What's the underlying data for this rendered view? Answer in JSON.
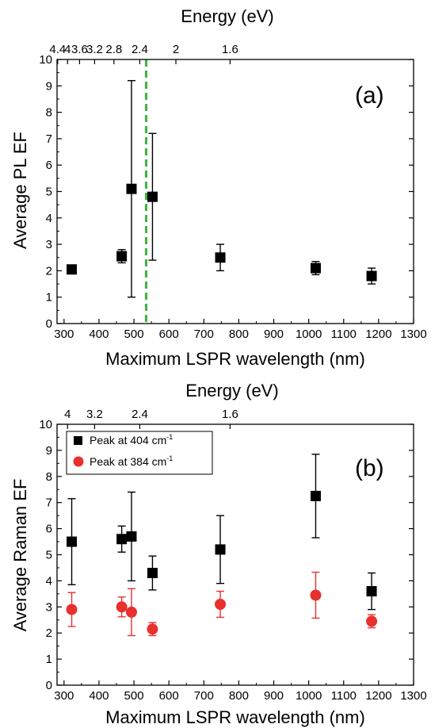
{
  "chart_data": [
    {
      "type": "scatter",
      "panel_label": "(a)",
      "xlabel": "Maximum LSPR wavelength (nm)",
      "ylabel": "Average PL EF",
      "top_axis_label": "Energy (eV)",
      "xlim": [
        280,
        1300
      ],
      "ylim": [
        0,
        10
      ],
      "x_ticks": [
        "300",
        "400",
        "500",
        "600",
        "700",
        "800",
        "900",
        "1000",
        "1100",
        "1200",
        "1300"
      ],
      "y_ticks": [
        "0",
        "1",
        "2",
        "3",
        "4",
        "5",
        "6",
        "7",
        "8",
        "9",
        "10"
      ],
      "top_ticks": [
        {
          "label": "4.4",
          "ev": 4.4
        },
        {
          "label": "4",
          "ev": 4.0
        },
        {
          "label": "3.6",
          "ev": 3.6
        },
        {
          "label": "3.2",
          "ev": 3.2
        },
        {
          "label": "2.8",
          "ev": 2.8
        },
        {
          "label": "2.4",
          "ev": 2.4
        },
        {
          "label": "2",
          "ev": 2.0
        },
        {
          "label": "1.6",
          "ev": 1.6
        }
      ],
      "vline": {
        "x": 535,
        "color": "#3cb83c",
        "style": "dashed"
      },
      "series": [
        {
          "marker": "square",
          "color": "#000000",
          "points": [
            {
              "x": 322,
              "y": 2.05,
              "err": 0.15
            },
            {
              "x": 465,
              "y": 2.55,
              "err": 0.25
            },
            {
              "x": 493,
              "y": 5.1,
              "err": 4.1
            },
            {
              "x": 553,
              "y": 4.8,
              "err": 2.4
            },
            {
              "x": 747,
              "y": 2.5,
              "err": 0.5
            },
            {
              "x": 1020,
              "y": 2.1,
              "err": 0.25
            },
            {
              "x": 1180,
              "y": 1.8,
              "err": 0.3
            }
          ]
        }
      ]
    },
    {
      "type": "scatter",
      "panel_label": "(b)",
      "xlabel": "Maximum LSPR wavelength (nm)",
      "ylabel": "Average Raman EF",
      "top_axis_label": "Energy (eV)",
      "xlim": [
        280,
        1300
      ],
      "ylim": [
        0,
        10
      ],
      "x_ticks": [
        "300",
        "400",
        "500",
        "600",
        "700",
        "800",
        "900",
        "1000",
        "1100",
        "1200",
        "1300"
      ],
      "y_ticks": [
        "0",
        "1",
        "2",
        "3",
        "4",
        "5",
        "6",
        "7",
        "8",
        "9",
        "10"
      ],
      "top_ticks": [
        {
          "label": "4",
          "ev": 4.0
        },
        {
          "label": "3.2",
          "ev": 3.2
        },
        {
          "label": "2.4",
          "ev": 2.4
        },
        {
          "label": "1.6",
          "ev": 1.6
        }
      ],
      "legend": {
        "placement": "top-left",
        "entries": [
          {
            "text": "Peak at 404 cm",
            "sup": "-1"
          },
          {
            "text": "Peak at 384 cm",
            "sup": "-1"
          }
        ]
      },
      "series": [
        {
          "marker": "square",
          "color": "#000000",
          "points": [
            {
              "x": 322,
              "y": 5.5,
              "err": 1.65
            },
            {
              "x": 465,
              "y": 5.6,
              "err": 0.5
            },
            {
              "x": 493,
              "y": 5.7,
              "err": 1.7
            },
            {
              "x": 553,
              "y": 4.3,
              "err": 0.65
            },
            {
              "x": 747,
              "y": 5.2,
              "err": 1.3
            },
            {
              "x": 1020,
              "y": 7.25,
              "err": 1.6
            },
            {
              "x": 1180,
              "y": 3.6,
              "err": 0.7
            }
          ]
        },
        {
          "marker": "circle",
          "color": "#e8302e",
          "points": [
            {
              "x": 322,
              "y": 2.9,
              "err": 0.65
            },
            {
              "x": 465,
              "y": 3.0,
              "err": 0.38
            },
            {
              "x": 493,
              "y": 2.8,
              "err": 0.9
            },
            {
              "x": 553,
              "y": 2.15,
              "err": 0.25
            },
            {
              "x": 747,
              "y": 3.1,
              "err": 0.5
            },
            {
              "x": 1020,
              "y": 3.45,
              "err": 0.88
            },
            {
              "x": 1180,
              "y": 2.45,
              "err": 0.25
            }
          ]
        }
      ]
    }
  ]
}
